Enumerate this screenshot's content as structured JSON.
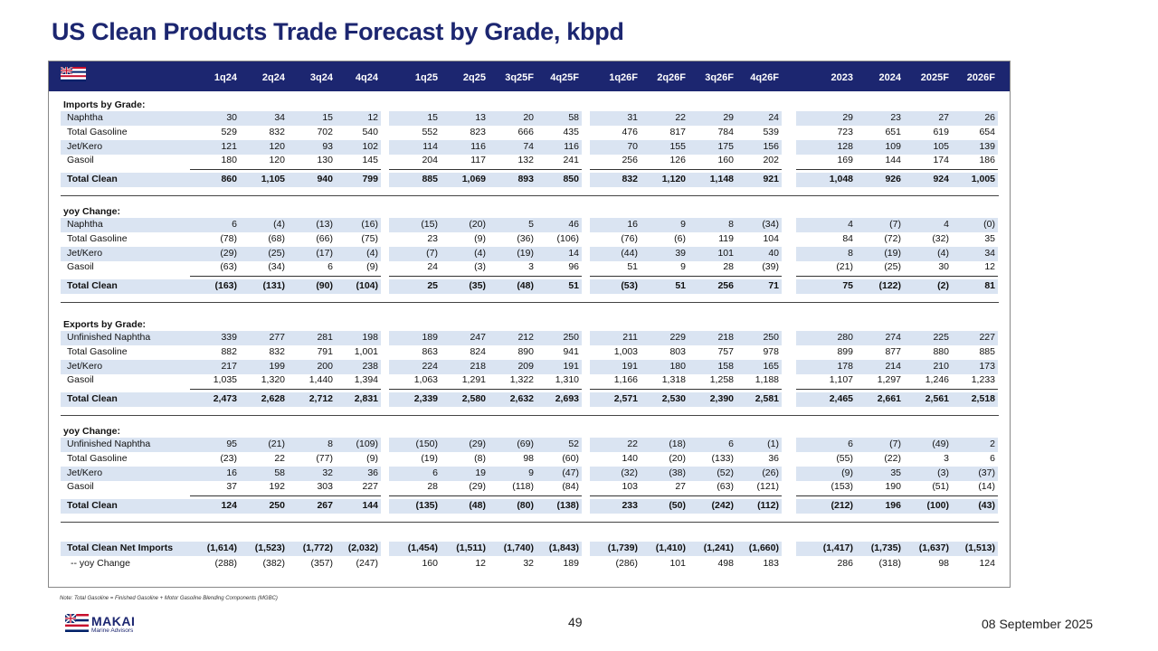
{
  "title": "US Clean Products Trade Forecast by Grade, kbpd",
  "columns": [
    "1q24",
    "2q24",
    "3q24",
    "4q24",
    "1q25",
    "2q25",
    "3q25F",
    "4q25F",
    "1q26F",
    "2q26F",
    "3q26F",
    "4q26F",
    "2023",
    "2024",
    "2025F",
    "2026F"
  ],
  "sections": [
    {
      "heading": "Imports by Grade:",
      "rows": [
        {
          "label": "Naphtha",
          "values": [
            "30",
            "34",
            "15",
            "12",
            "15",
            "13",
            "20",
            "58",
            "31",
            "22",
            "29",
            "24",
            "29",
            "23",
            "27",
            "26"
          ]
        },
        {
          "label": "Total Gasoline",
          "values": [
            "529",
            "832",
            "702",
            "540",
            "552",
            "823",
            "666",
            "435",
            "476",
            "817",
            "784",
            "539",
            "723",
            "651",
            "619",
            "654"
          ]
        },
        {
          "label": "Jet/Kero",
          "values": [
            "121",
            "120",
            "93",
            "102",
            "114",
            "116",
            "74",
            "116",
            "70",
            "155",
            "175",
            "156",
            "128",
            "109",
            "105",
            "139"
          ]
        },
        {
          "label": "Gasoil",
          "values": [
            "180",
            "120",
            "130",
            "145",
            "204",
            "117",
            "132",
            "241",
            "256",
            "126",
            "160",
            "202",
            "169",
            "144",
            "174",
            "186"
          ]
        }
      ],
      "total": {
        "label": "Total Clean",
        "values": [
          "860",
          "1,105",
          "940",
          "799",
          "885",
          "1,069",
          "893",
          "850",
          "832",
          "1,120",
          "1,148",
          "921",
          "1,048",
          "926",
          "924",
          "1,005"
        ]
      }
    },
    {
      "heading": "yoy Change:",
      "rows": [
        {
          "label": "Naphtha",
          "values": [
            "6",
            "(4)",
            "(13)",
            "(16)",
            "(15)",
            "(20)",
            "5",
            "46",
            "16",
            "9",
            "8",
            "(34)",
            "4",
            "(7)",
            "4",
            "(0)"
          ]
        },
        {
          "label": "Total Gasoline",
          "values": [
            "(78)",
            "(68)",
            "(66)",
            "(75)",
            "23",
            "(9)",
            "(36)",
            "(106)",
            "(76)",
            "(6)",
            "119",
            "104",
            "84",
            "(72)",
            "(32)",
            "35"
          ]
        },
        {
          "label": "Jet/Kero",
          "values": [
            "(29)",
            "(25)",
            "(17)",
            "(4)",
            "(7)",
            "(4)",
            "(19)",
            "14",
            "(44)",
            "39",
            "101",
            "40",
            "8",
            "(19)",
            "(4)",
            "34"
          ]
        },
        {
          "label": "Gasoil",
          "values": [
            "(63)",
            "(34)",
            "6",
            "(9)",
            "24",
            "(3)",
            "3",
            "96",
            "51",
            "9",
            "28",
            "(39)",
            "(21)",
            "(25)",
            "30",
            "12"
          ]
        }
      ],
      "total": {
        "label": "Total Clean",
        "values": [
          "(163)",
          "(131)",
          "(90)",
          "(104)",
          "25",
          "(35)",
          "(48)",
          "51",
          "(53)",
          "51",
          "256",
          "71",
          "75",
          "(122)",
          "(2)",
          "81"
        ]
      }
    },
    {
      "heading": "Exports by Grade:",
      "rows": [
        {
          "label": "Unfinished Naphtha",
          "values": [
            "339",
            "277",
            "281",
            "198",
            "189",
            "247",
            "212",
            "250",
            "211",
            "229",
            "218",
            "250",
            "280",
            "274",
            "225",
            "227"
          ]
        },
        {
          "label": "Total Gasoline",
          "values": [
            "882",
            "832",
            "791",
            "1,001",
            "863",
            "824",
            "890",
            "941",
            "1,003",
            "803",
            "757",
            "978",
            "899",
            "877",
            "880",
            "885"
          ]
        },
        {
          "label": "Jet/Kero",
          "values": [
            "217",
            "199",
            "200",
            "238",
            "224",
            "218",
            "209",
            "191",
            "191",
            "180",
            "158",
            "165",
            "178",
            "214",
            "210",
            "173"
          ]
        },
        {
          "label": "Gasoil",
          "values": [
            "1,035",
            "1,320",
            "1,440",
            "1,394",
            "1,063",
            "1,291",
            "1,322",
            "1,310",
            "1,166",
            "1,318",
            "1,258",
            "1,188",
            "1,107",
            "1,297",
            "1,246",
            "1,233"
          ]
        }
      ],
      "total": {
        "label": "Total Clean",
        "values": [
          "2,473",
          "2,628",
          "2,712",
          "2,831",
          "2,339",
          "2,580",
          "2,632",
          "2,693",
          "2,571",
          "2,530",
          "2,390",
          "2,581",
          "2,465",
          "2,661",
          "2,561",
          "2,518"
        ]
      }
    },
    {
      "heading": "yoy Change:",
      "rows": [
        {
          "label": "Unfinished Naphtha",
          "values": [
            "95",
            "(21)",
            "8",
            "(109)",
            "(150)",
            "(29)",
            "(69)",
            "52",
            "22",
            "(18)",
            "6",
            "(1)",
            "6",
            "(7)",
            "(49)",
            "2"
          ]
        },
        {
          "label": "Total Gasoline",
          "values": [
            "(23)",
            "22",
            "(77)",
            "(9)",
            "(19)",
            "(8)",
            "98",
            "(60)",
            "140",
            "(20)",
            "(133)",
            "36",
            "(55)",
            "(22)",
            "3",
            "6"
          ]
        },
        {
          "label": "Jet/Kero",
          "values": [
            "16",
            "58",
            "32",
            "36",
            "6",
            "19",
            "9",
            "(47)",
            "(32)",
            "(38)",
            "(52)",
            "(26)",
            "(9)",
            "35",
            "(3)",
            "(37)"
          ]
        },
        {
          "label": "Gasoil",
          "values": [
            "37",
            "192",
            "303",
            "227",
            "28",
            "(29)",
            "(118)",
            "(84)",
            "103",
            "27",
            "(63)",
            "(121)",
            "(153)",
            "190",
            "(51)",
            "(14)"
          ]
        }
      ],
      "total": {
        "label": "Total Clean",
        "values": [
          "124",
          "250",
          "267",
          "144",
          "(135)",
          "(48)",
          "(80)",
          "(138)",
          "233",
          "(50)",
          "(242)",
          "(112)",
          "(212)",
          "196",
          "(100)",
          "(43)"
        ]
      }
    }
  ],
  "net": {
    "label": "Total Clean Net Imports",
    "values": [
      "(1,614)",
      "(1,523)",
      "(1,772)",
      "(2,032)",
      "(1,454)",
      "(1,511)",
      "(1,740)",
      "(1,843)",
      "(1,739)",
      "(1,410)",
      "(1,241)",
      "(1,660)",
      "(1,417)",
      "(1,735)",
      "(1,637)",
      "(1,513)"
    ]
  },
  "net_yoy": {
    "label": "-- yoy Change",
    "values": [
      "(288)",
      "(382)",
      "(357)",
      "(247)",
      "160",
      "12",
      "32",
      "189",
      "(286)",
      "101",
      "498",
      "183",
      "286",
      "(318)",
      "98",
      "124"
    ]
  },
  "note": "Note: Total Gasoline = Finished Gasoline + Motor Gasoline Blending Components (MGBC)",
  "page_number": "49",
  "date": "08 September 2025",
  "logo": {
    "name": "MAKAI",
    "subtitle": "Marine Advisors"
  },
  "colors": {
    "navy": "#1c2670",
    "band": "#dae4f2"
  }
}
